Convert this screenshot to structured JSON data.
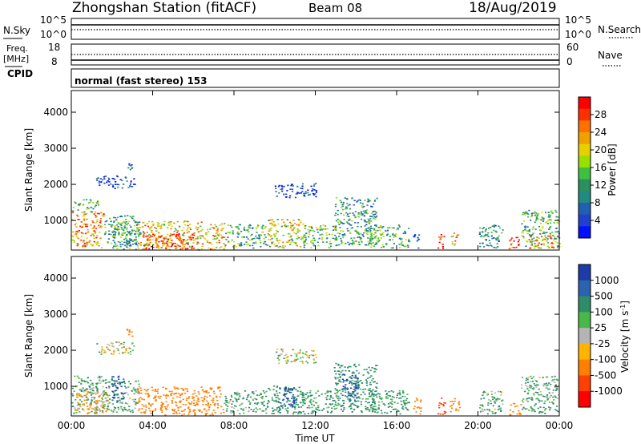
{
  "header": {
    "title": "Zhongshan Station (fitACF)",
    "beam": "Beam 08",
    "date": "18/Aug/2019"
  },
  "nsky_panel": {
    "left_label": "N.Sky",
    "left_ticks": [
      "10^5",
      "10^0"
    ],
    "right_label": "N.Search",
    "right_ticks": [
      "10^5",
      "10^0"
    ]
  },
  "freq_panel": {
    "left_label_line1": "Freq.",
    "left_label_line2": "[MHz]",
    "left_ticks": [
      "18",
      "8"
    ],
    "right_label": "Nave",
    "right_ticks": [
      "60",
      "0"
    ]
  },
  "cpid": {
    "label": "CPID",
    "value": "normal (fast stereo) 153"
  },
  "axes": {
    "ylabel": "Slant Range [km]",
    "yticks": [
      "4000",
      "3000",
      "2000",
      "1000"
    ],
    "xticks": [
      "00:00",
      "04:00",
      "08:00",
      "12:00",
      "16:00",
      "20:00",
      "00:00"
    ],
    "xlabel": "Time UT"
  },
  "power_scale": {
    "label": "Power [dB]",
    "ticks": [
      "28",
      "24",
      "20",
      "16",
      "12",
      "8",
      "4"
    ],
    "colors": [
      "#ff0000",
      "#ff3000",
      "#ff7000",
      "#f0a000",
      "#e8d000",
      "#98e000",
      "#40c040",
      "#2a9060",
      "#208c80",
      "#2060b0",
      "#2040d0",
      "#0010ff"
    ]
  },
  "velocity_scale": {
    "label": "Velocity [m s",
    "label_sup": "-1",
    "label_end": "]",
    "ticks": [
      "1000",
      "500",
      "100",
      "25",
      "-25",
      "-100",
      "-500",
      "-1000"
    ],
    "colors": [
      "#1e3ca8",
      "#2a64b0",
      "#2e8c6a",
      "#48b848",
      "#b4b4b4",
      "#ffb400",
      "#ff8000",
      "#ff4000",
      "#ff0000"
    ]
  },
  "chart_data": [
    {
      "type": "heatmap",
      "title": "Power [dB]",
      "xlabel": "Time UT",
      "ylabel": "Slant Range [km]",
      "xlim": [
        "00:00",
        "24:00"
      ],
      "ylim": [
        180,
        4600
      ],
      "colorbar_range": [
        0,
        30
      ],
      "blobs": [
        {
          "t0": 0.0,
          "t1": 1.6,
          "r0": 250,
          "r1": 1250,
          "level": 22
        },
        {
          "t0": 0.0,
          "t1": 1.3,
          "r0": 1250,
          "r1": 1600,
          "level": 12
        },
        {
          "t0": 1.6,
          "t1": 3.3,
          "r0": 300,
          "r1": 1150,
          "level": 11
        },
        {
          "t0": 2.0,
          "t1": 3.4,
          "r0": 200,
          "r1": 1000,
          "level": 12
        },
        {
          "t0": 3.2,
          "t1": 7.5,
          "r0": 200,
          "r1": 1000,
          "level": 20
        },
        {
          "t0": 3.5,
          "t1": 6.0,
          "r0": 200,
          "r1": 650,
          "level": 26
        },
        {
          "t0": 7.5,
          "t1": 9.6,
          "r0": 250,
          "r1": 900,
          "level": 12
        },
        {
          "t0": 9.6,
          "t1": 11.4,
          "r0": 250,
          "r1": 1050,
          "level": 17
        },
        {
          "t0": 11.3,
          "t1": 13.1,
          "r0": 250,
          "r1": 900,
          "level": 13
        },
        {
          "t0": 10.0,
          "t1": 12.1,
          "r0": 1650,
          "r1": 2050,
          "level": 5
        },
        {
          "t0": 12.9,
          "t1": 15.0,
          "r0": 300,
          "r1": 1650,
          "level": 10
        },
        {
          "t0": 14.4,
          "t1": 16.6,
          "r0": 250,
          "r1": 900,
          "level": 12
        },
        {
          "t0": 16.8,
          "t1": 17.1,
          "r0": 250,
          "r1": 700,
          "level": 6
        },
        {
          "t0": 18.0,
          "t1": 18.3,
          "r0": 200,
          "r1": 700,
          "level": 28
        },
        {
          "t0": 18.6,
          "t1": 19.0,
          "r0": 300,
          "r1": 700,
          "level": 20
        },
        {
          "t0": 20.0,
          "t1": 21.2,
          "r0": 250,
          "r1": 900,
          "level": 8
        },
        {
          "t0": 21.5,
          "t1": 22.1,
          "r0": 200,
          "r1": 550,
          "level": 26
        },
        {
          "t0": 22.1,
          "t1": 24.0,
          "r0": 250,
          "r1": 1300,
          "level": 12
        },
        {
          "t0": 22.5,
          "t1": 24.0,
          "r0": 250,
          "r1": 600,
          "level": 22
        },
        {
          "t0": 1.2,
          "t1": 3.1,
          "r0": 1900,
          "r1": 2250,
          "level": 5
        },
        {
          "t0": 2.7,
          "t1": 3.0,
          "r0": 2400,
          "r1": 2600,
          "level": 4
        }
      ]
    },
    {
      "type": "heatmap",
      "title": "Velocity [m s-1]",
      "xlabel": "Time UT",
      "ylabel": "Slant Range [km]",
      "xlim": [
        "00:00",
        "24:00"
      ],
      "ylim": [
        180,
        4600
      ],
      "colorbar_range": [
        -1000,
        1000
      ],
      "blobs": [
        {
          "t0": 0.0,
          "t1": 1.6,
          "r0": 250,
          "r1": 1300,
          "level": 100
        },
        {
          "t0": 0.2,
          "t1": 1.8,
          "r0": 250,
          "r1": 900,
          "level": -100
        },
        {
          "t0": 1.5,
          "t1": 3.3,
          "r0": 300,
          "r1": 1200,
          "level": 100
        },
        {
          "t0": 1.9,
          "t1": 2.6,
          "r0": 600,
          "r1": 1300,
          "level": 1000
        },
        {
          "t0": 3.2,
          "t1": 7.5,
          "r0": 200,
          "r1": 1000,
          "level": -300
        },
        {
          "t0": 7.5,
          "t1": 9.6,
          "r0": 250,
          "r1": 900,
          "level": 100
        },
        {
          "t0": 9.6,
          "t1": 11.4,
          "r0": 250,
          "r1": 1050,
          "level": 200
        },
        {
          "t0": 10.2,
          "t1": 11.0,
          "r0": 400,
          "r1": 1000,
          "level": 1000
        },
        {
          "t0": 11.3,
          "t1": 13.1,
          "r0": 250,
          "r1": 900,
          "level": 150
        },
        {
          "t0": 10.0,
          "t1": 12.1,
          "r0": 1650,
          "r1": 2050,
          "level": 0
        },
        {
          "t0": 12.9,
          "t1": 15.0,
          "r0": 300,
          "r1": 1650,
          "level": 200
        },
        {
          "t0": 13.3,
          "t1": 14.1,
          "r0": 600,
          "r1": 1400,
          "level": 1000
        },
        {
          "t0": 14.4,
          "t1": 16.6,
          "r0": 250,
          "r1": 900,
          "level": 150
        },
        {
          "t0": 16.8,
          "t1": 17.2,
          "r0": 250,
          "r1": 700,
          "level": -300
        },
        {
          "t0": 18.0,
          "t1": 18.4,
          "r0": 200,
          "r1": 700,
          "level": -800
        },
        {
          "t0": 18.6,
          "t1": 19.1,
          "r0": 300,
          "r1": 700,
          "level": -300
        },
        {
          "t0": 20.0,
          "t1": 21.2,
          "r0": 250,
          "r1": 900,
          "level": 100
        },
        {
          "t0": 21.5,
          "t1": 22.1,
          "r0": 200,
          "r1": 550,
          "level": -300
        },
        {
          "t0": 22.1,
          "t1": 24.0,
          "r0": 250,
          "r1": 1300,
          "level": 100
        },
        {
          "t0": 1.2,
          "t1": 3.1,
          "r0": 1900,
          "r1": 2250,
          "level": 0
        },
        {
          "t0": 2.7,
          "t1": 3.0,
          "r0": 2400,
          "r1": 2600,
          "level": -300
        }
      ]
    }
  ]
}
